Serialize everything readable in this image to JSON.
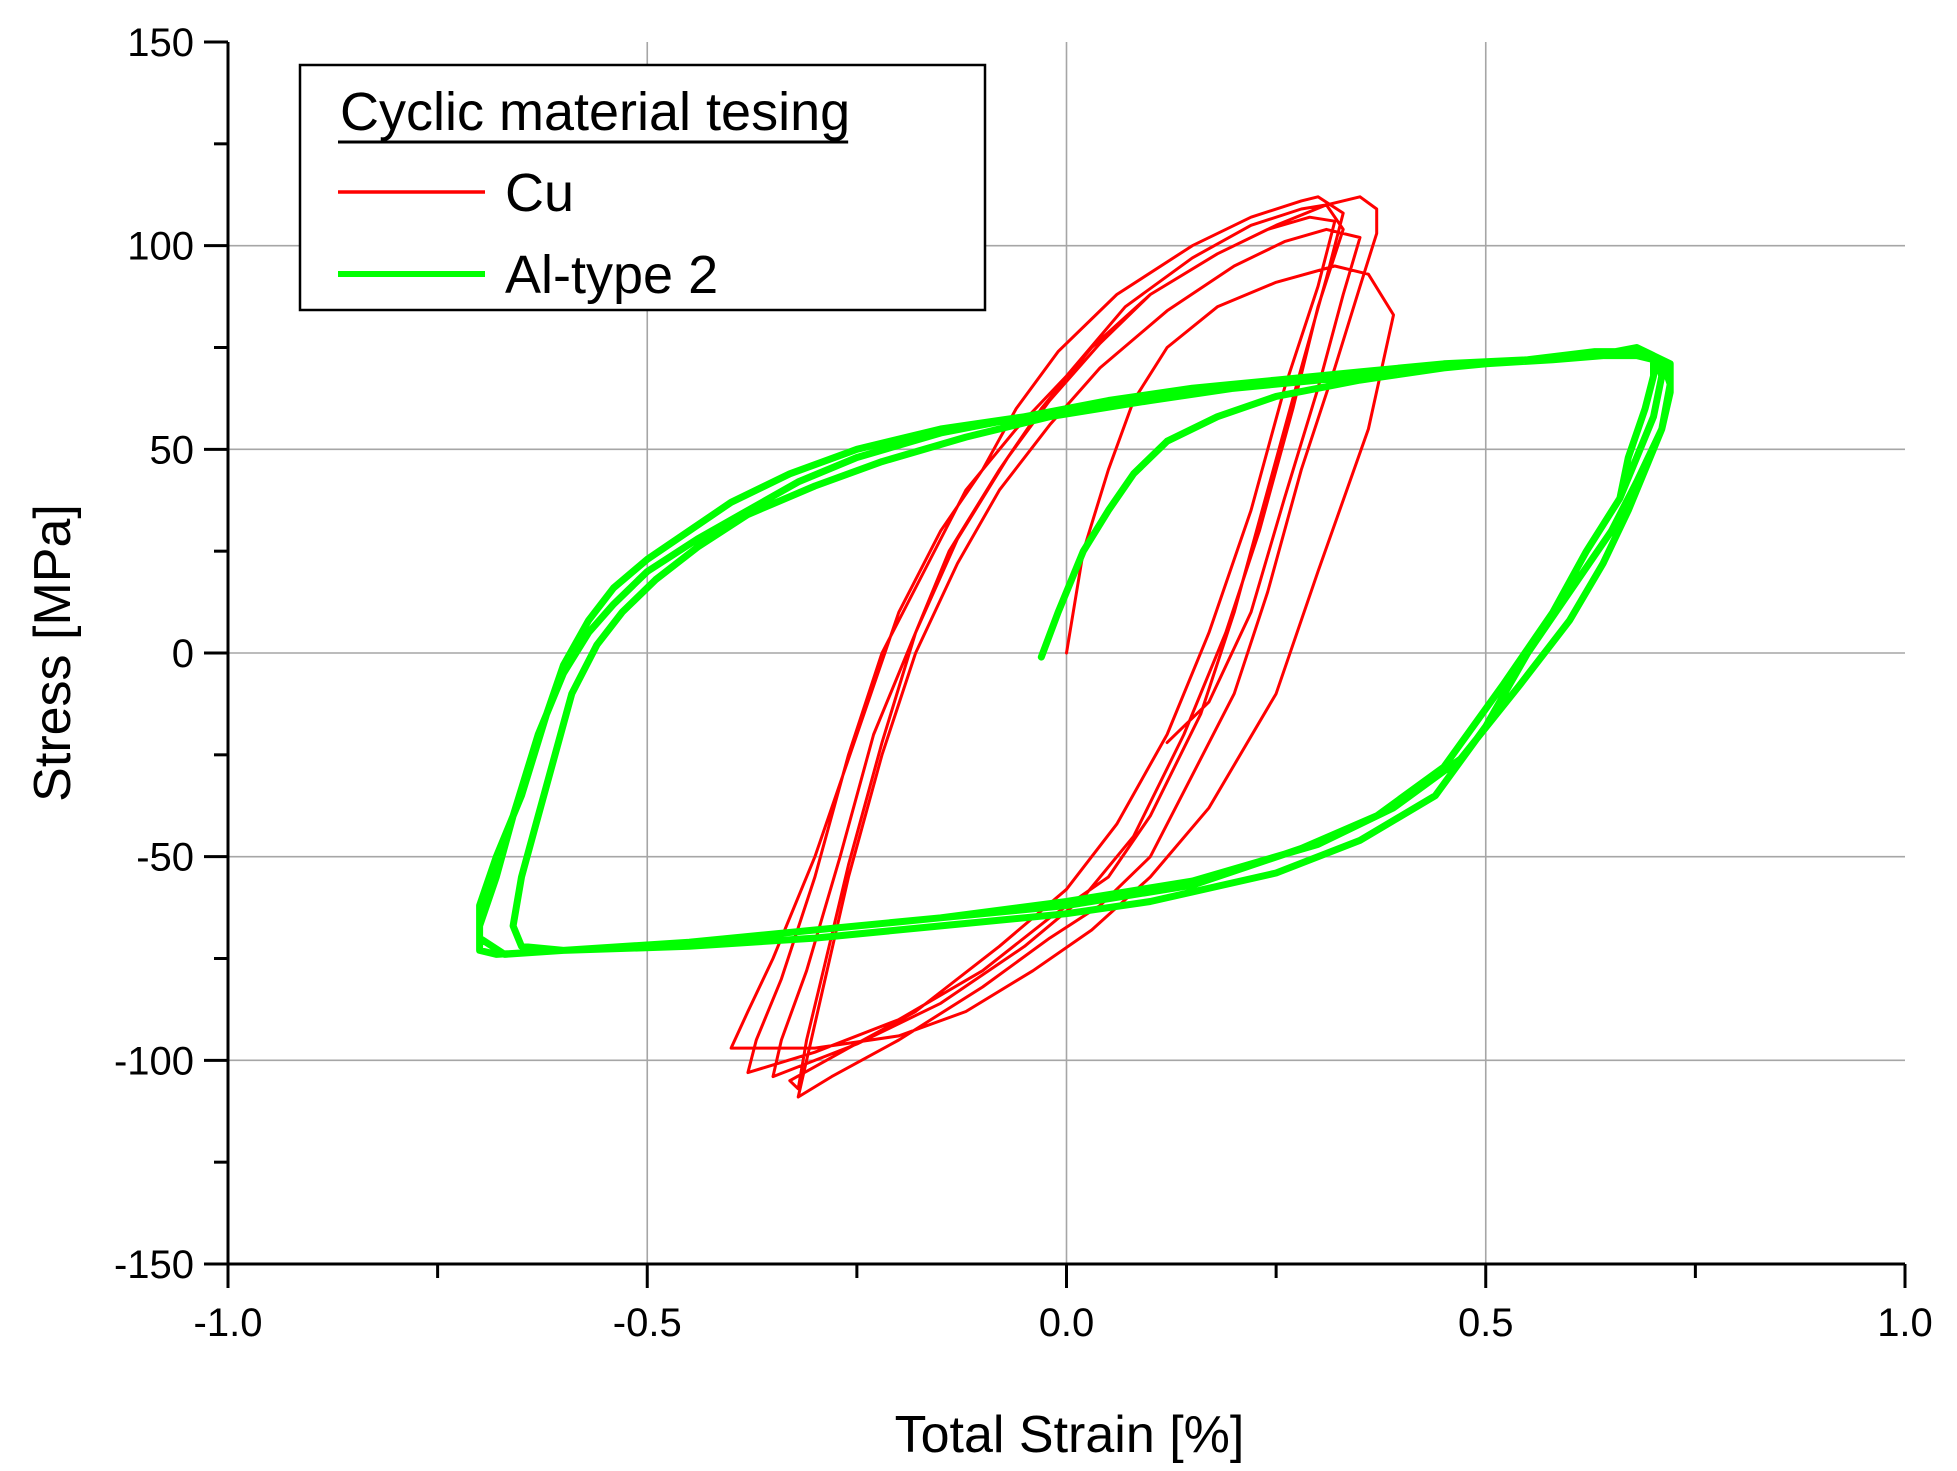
{
  "chart_data": {
    "type": "line",
    "xlabel": "Total Strain [%]",
    "ylabel": "Stress [MPa]",
    "xlim": [
      -1.0,
      1.0
    ],
    "ylim": [
      -150,
      150
    ],
    "x_ticks": [
      "-1.0",
      "-0.5",
      "0.0",
      "0.5",
      "1.0"
    ],
    "y_ticks": [
      "150",
      "100",
      "50",
      "0",
      "-50",
      "-100",
      "-150"
    ],
    "grid": true,
    "legend": {
      "title": "Cyclic material tesing",
      "placement": "top-left"
    },
    "series": [
      {
        "name": "Cu",
        "color": "#ff0000",
        "points": [
          [
            0.0,
            0
          ],
          [
            0.02,
            25
          ],
          [
            0.05,
            45
          ],
          [
            0.08,
            62
          ],
          [
            0.12,
            75
          ],
          [
            0.18,
            85
          ],
          [
            0.25,
            91
          ],
          [
            0.32,
            95
          ],
          [
            0.36,
            93
          ],
          [
            0.39,
            83
          ],
          [
            0.36,
            55
          ],
          [
            0.3,
            20
          ],
          [
            0.25,
            -10
          ],
          [
            0.17,
            -38
          ],
          [
            0.1,
            -55
          ],
          [
            0.03,
            -68
          ],
          [
            -0.04,
            -78
          ],
          [
            -0.12,
            -88
          ],
          [
            -0.2,
            -94
          ],
          [
            -0.3,
            -97
          ],
          [
            -0.4,
            -97
          ],
          [
            -0.38,
            -88
          ],
          [
            -0.35,
            -75
          ],
          [
            -0.3,
            -50
          ],
          [
            -0.25,
            -20
          ],
          [
            -0.2,
            10
          ],
          [
            -0.15,
            30
          ],
          [
            -0.1,
            45
          ],
          [
            -0.06,
            60
          ],
          [
            -0.01,
            74
          ],
          [
            0.06,
            88
          ],
          [
            0.15,
            100
          ],
          [
            0.22,
            107
          ],
          [
            0.28,
            111
          ],
          [
            0.3,
            112
          ],
          [
            0.33,
            108
          ],
          [
            0.31,
            92
          ],
          [
            0.28,
            70
          ],
          [
            0.24,
            40
          ],
          [
            0.2,
            10
          ],
          [
            0.16,
            -15
          ],
          [
            0.1,
            -40
          ],
          [
            0.05,
            -55
          ],
          [
            -0.02,
            -65
          ],
          [
            -0.1,
            -78
          ],
          [
            -0.2,
            -90
          ],
          [
            -0.3,
            -98
          ],
          [
            -0.38,
            -103
          ],
          [
            -0.37,
            -95
          ],
          [
            -0.34,
            -80
          ],
          [
            -0.3,
            -55
          ],
          [
            -0.26,
            -25
          ],
          [
            -0.22,
            0
          ],
          [
            -0.17,
            20
          ],
          [
            -0.12,
            40
          ],
          [
            -0.06,
            55
          ],
          [
            0.0,
            68
          ],
          [
            0.07,
            85
          ],
          [
            0.15,
            97
          ],
          [
            0.22,
            105
          ],
          [
            0.28,
            109
          ],
          [
            0.31,
            110
          ],
          [
            0.33,
            104
          ],
          [
            0.3,
            85
          ],
          [
            0.27,
            60
          ],
          [
            0.23,
            30
          ],
          [
            0.19,
            5
          ],
          [
            0.14,
            -20
          ],
          [
            0.08,
            -45
          ],
          [
            0.02,
            -60
          ],
          [
            -0.05,
            -72
          ],
          [
            -0.15,
            -86
          ],
          [
            -0.25,
            -96
          ],
          [
            -0.35,
            -104
          ],
          [
            -0.34,
            -95
          ],
          [
            -0.31,
            -78
          ],
          [
            -0.27,
            -50
          ],
          [
            -0.23,
            -20
          ],
          [
            -0.19,
            0
          ],
          [
            -0.14,
            25
          ],
          [
            -0.08,
            45
          ],
          [
            -0.03,
            60
          ],
          [
            0.03,
            75
          ],
          [
            0.1,
            88
          ],
          [
            0.18,
            98
          ],
          [
            0.24,
            104
          ],
          [
            0.29,
            107
          ],
          [
            0.32,
            106
          ],
          [
            0.3,
            90
          ],
          [
            0.26,
            65
          ],
          [
            0.22,
            35
          ],
          [
            0.17,
            5
          ],
          [
            0.12,
            -20
          ],
          [
            0.06,
            -42
          ],
          [
            0.0,
            -58
          ],
          [
            -0.08,
            -72
          ],
          [
            -0.18,
            -88
          ],
          [
            -0.26,
            -97
          ],
          [
            -0.33,
            -105
          ],
          [
            -0.32,
            -107
          ],
          [
            -0.31,
            -95
          ],
          [
            -0.29,
            -78
          ],
          [
            -0.26,
            -52
          ],
          [
            -0.22,
            -22
          ],
          [
            -0.18,
            5
          ],
          [
            -0.13,
            28
          ],
          [
            -0.07,
            48
          ],
          [
            -0.02,
            62
          ],
          [
            0.04,
            76
          ],
          [
            0.1,
            88
          ],
          [
            0.18,
            98
          ],
          [
            0.25,
            105
          ],
          [
            0.31,
            110
          ],
          [
            0.35,
            112
          ],
          [
            0.37,
            109
          ],
          [
            0.37,
            103
          ],
          [
            0.35,
            90
          ],
          [
            0.32,
            70
          ],
          [
            0.28,
            45
          ],
          [
            0.24,
            15
          ],
          [
            0.2,
            -10
          ],
          [
            0.15,
            -30
          ],
          [
            0.1,
            -50
          ],
          [
            0.04,
            -62
          ],
          [
            -0.02,
            -70
          ],
          [
            -0.1,
            -82
          ],
          [
            -0.2,
            -95
          ],
          [
            -0.28,
            -104
          ],
          [
            -0.32,
            -109
          ],
          [
            -0.31,
            -100
          ],
          [
            -0.29,
            -82
          ],
          [
            -0.26,
            -55
          ],
          [
            -0.22,
            -25
          ],
          [
            -0.18,
            0
          ],
          [
            -0.13,
            22
          ],
          [
            -0.08,
            40
          ],
          [
            -0.02,
            56
          ],
          [
            0.04,
            70
          ],
          [
            0.12,
            84
          ],
          [
            0.2,
            95
          ],
          [
            0.26,
            101
          ],
          [
            0.31,
            104
          ],
          [
            0.35,
            102
          ],
          [
            0.33,
            88
          ],
          [
            0.3,
            65
          ],
          [
            0.26,
            38
          ],
          [
            0.22,
            10
          ],
          [
            0.17,
            -12
          ],
          [
            0.12,
            -22
          ]
        ]
      },
      {
        "name": "Al-type 2",
        "color": "#00ff00",
        "points": [
          [
            -0.03,
            -1
          ],
          [
            -0.01,
            10
          ],
          [
            0.02,
            25
          ],
          [
            0.05,
            35
          ],
          [
            0.08,
            44
          ],
          [
            0.12,
            52
          ],
          [
            0.18,
            58
          ],
          [
            0.25,
            63
          ],
          [
            0.35,
            67
          ],
          [
            0.45,
            70
          ],
          [
            0.55,
            72
          ],
          [
            0.63,
            74
          ],
          [
            0.68,
            74
          ],
          [
            0.71,
            72
          ],
          [
            0.72,
            66
          ],
          [
            0.71,
            55
          ],
          [
            0.68,
            42
          ],
          [
            0.65,
            30
          ],
          [
            0.6,
            15
          ],
          [
            0.55,
            0
          ],
          [
            0.5,
            -18
          ],
          [
            0.44,
            -35
          ],
          [
            0.35,
            -46
          ],
          [
            0.25,
            -54
          ],
          [
            0.1,
            -61
          ],
          [
            0.0,
            -64
          ],
          [
            -0.15,
            -67
          ],
          [
            -0.3,
            -70
          ],
          [
            -0.45,
            -72
          ],
          [
            -0.6,
            -73
          ],
          [
            -0.67,
            -74
          ],
          [
            -0.7,
            -70
          ],
          [
            -0.7,
            -62
          ],
          [
            -0.68,
            -50
          ],
          [
            -0.65,
            -35
          ],
          [
            -0.62,
            -15
          ],
          [
            -0.6,
            -3
          ],
          [
            -0.57,
            8
          ],
          [
            -0.54,
            16
          ],
          [
            -0.5,
            23
          ],
          [
            -0.45,
            30
          ],
          [
            -0.4,
            37
          ],
          [
            -0.33,
            44
          ],
          [
            -0.25,
            50
          ],
          [
            -0.15,
            55
          ],
          [
            -0.05,
            58
          ],
          [
            0.05,
            62
          ],
          [
            0.15,
            65
          ],
          [
            0.25,
            67
          ],
          [
            0.35,
            69
          ],
          [
            0.45,
            71
          ],
          [
            0.55,
            72
          ],
          [
            0.63,
            73
          ],
          [
            0.68,
            75
          ],
          [
            0.7,
            73
          ],
          [
            0.71,
            68
          ],
          [
            0.7,
            58
          ],
          [
            0.68,
            48
          ],
          [
            0.66,
            38
          ],
          [
            0.62,
            25
          ],
          [
            0.58,
            10
          ],
          [
            0.52,
            -8
          ],
          [
            0.45,
            -28
          ],
          [
            0.37,
            -40
          ],
          [
            0.28,
            -48
          ],
          [
            0.15,
            -57
          ],
          [
            0.0,
            -62
          ],
          [
            -0.15,
            -65
          ],
          [
            -0.3,
            -68
          ],
          [
            -0.45,
            -71
          ],
          [
            -0.6,
            -73
          ],
          [
            -0.68,
            -74
          ],
          [
            -0.7,
            -73
          ],
          [
            -0.7,
            -67
          ],
          [
            -0.68,
            -55
          ],
          [
            -0.66,
            -40
          ],
          [
            -0.63,
            -20
          ],
          [
            -0.6,
            -5
          ],
          [
            -0.57,
            5
          ],
          [
            -0.54,
            12
          ],
          [
            -0.5,
            20
          ],
          [
            -0.44,
            28
          ],
          [
            -0.38,
            35
          ],
          [
            -0.32,
            42
          ],
          [
            -0.25,
            48
          ],
          [
            -0.15,
            54
          ],
          [
            -0.05,
            58
          ],
          [
            0.05,
            61
          ],
          [
            0.15,
            64
          ],
          [
            0.25,
            66
          ],
          [
            0.35,
            68
          ],
          [
            0.45,
            70
          ],
          [
            0.55,
            72
          ],
          [
            0.63,
            73
          ],
          [
            0.69,
            74
          ],
          [
            0.72,
            71
          ],
          [
            0.72,
            64
          ],
          [
            0.71,
            55
          ],
          [
            0.69,
            45
          ],
          [
            0.67,
            35
          ],
          [
            0.64,
            22
          ],
          [
            0.6,
            8
          ],
          [
            0.54,
            -8
          ],
          [
            0.47,
            -26
          ],
          [
            0.39,
            -38
          ],
          [
            0.3,
            -47
          ],
          [
            0.15,
            -56
          ],
          [
            0.0,
            -61
          ],
          [
            -0.15,
            -65
          ],
          [
            -0.3,
            -68
          ],
          [
            -0.45,
            -71
          ],
          [
            -0.6,
            -73
          ],
          [
            -0.65,
            -72
          ],
          [
            -0.66,
            -67
          ],
          [
            -0.65,
            -55
          ],
          [
            -0.63,
            -40
          ],
          [
            -0.61,
            -25
          ],
          [
            -0.59,
            -10
          ],
          [
            -0.56,
            2
          ],
          [
            -0.53,
            10
          ],
          [
            -0.49,
            18
          ],
          [
            -0.44,
            26
          ],
          [
            -0.38,
            34
          ],
          [
            -0.3,
            41
          ],
          [
            -0.22,
            47
          ],
          [
            -0.12,
            53
          ],
          [
            -0.02,
            58
          ],
          [
            0.1,
            62
          ],
          [
            0.2,
            65
          ],
          [
            0.3,
            67
          ],
          [
            0.4,
            69
          ],
          [
            0.5,
            71
          ],
          [
            0.58,
            72
          ],
          [
            0.64,
            73
          ],
          [
            0.68,
            73
          ],
          [
            0.7,
            72
          ],
          [
            0.7,
            68
          ],
          [
            0.69,
            60
          ],
          [
            0.67,
            48
          ],
          [
            0.66,
            38
          ]
        ]
      }
    ]
  }
}
